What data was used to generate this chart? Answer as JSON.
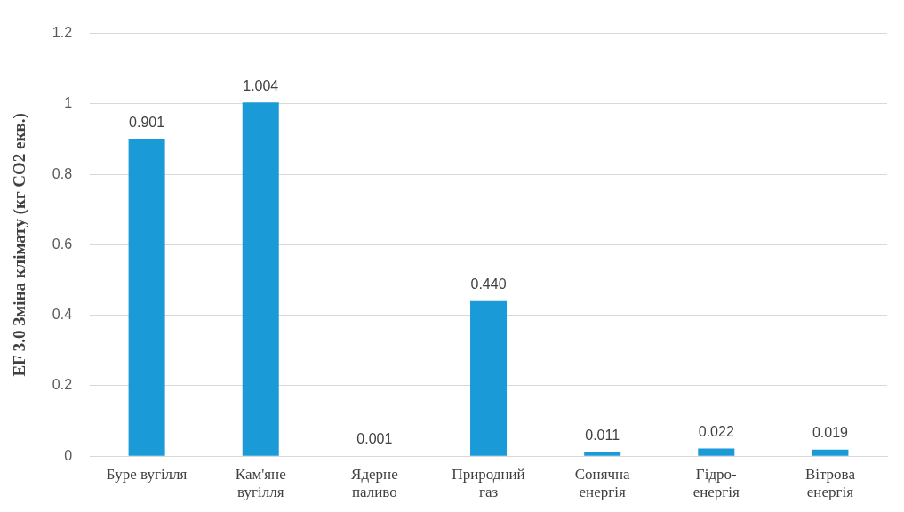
{
  "chart_data": {
    "type": "bar",
    "ylabel": "EF 3.0 Зміна клімату (кг CO2 екв.)",
    "categories": [
      "Буре вугілля",
      "Кам'яне вугілля",
      "Ядерне паливо",
      "Природний газ",
      "Сонячна енергія",
      "Гідро-енергія",
      "Вітрова енергія"
    ],
    "values": [
      0.901,
      1.004,
      0.001,
      0.44,
      0.011,
      0.022,
      0.019
    ],
    "value_labels": [
      "0.901",
      "1.004",
      "0.001",
      "0.440",
      "0.011",
      "0.022",
      "0.019"
    ],
    "color": "#1a9ad6",
    "ylim": [
      0,
      1.2
    ],
    "yticks": [
      0,
      0.2,
      0.4,
      0.6,
      0.8,
      1,
      1.2
    ],
    "grid": "y",
    "legend": false
  }
}
